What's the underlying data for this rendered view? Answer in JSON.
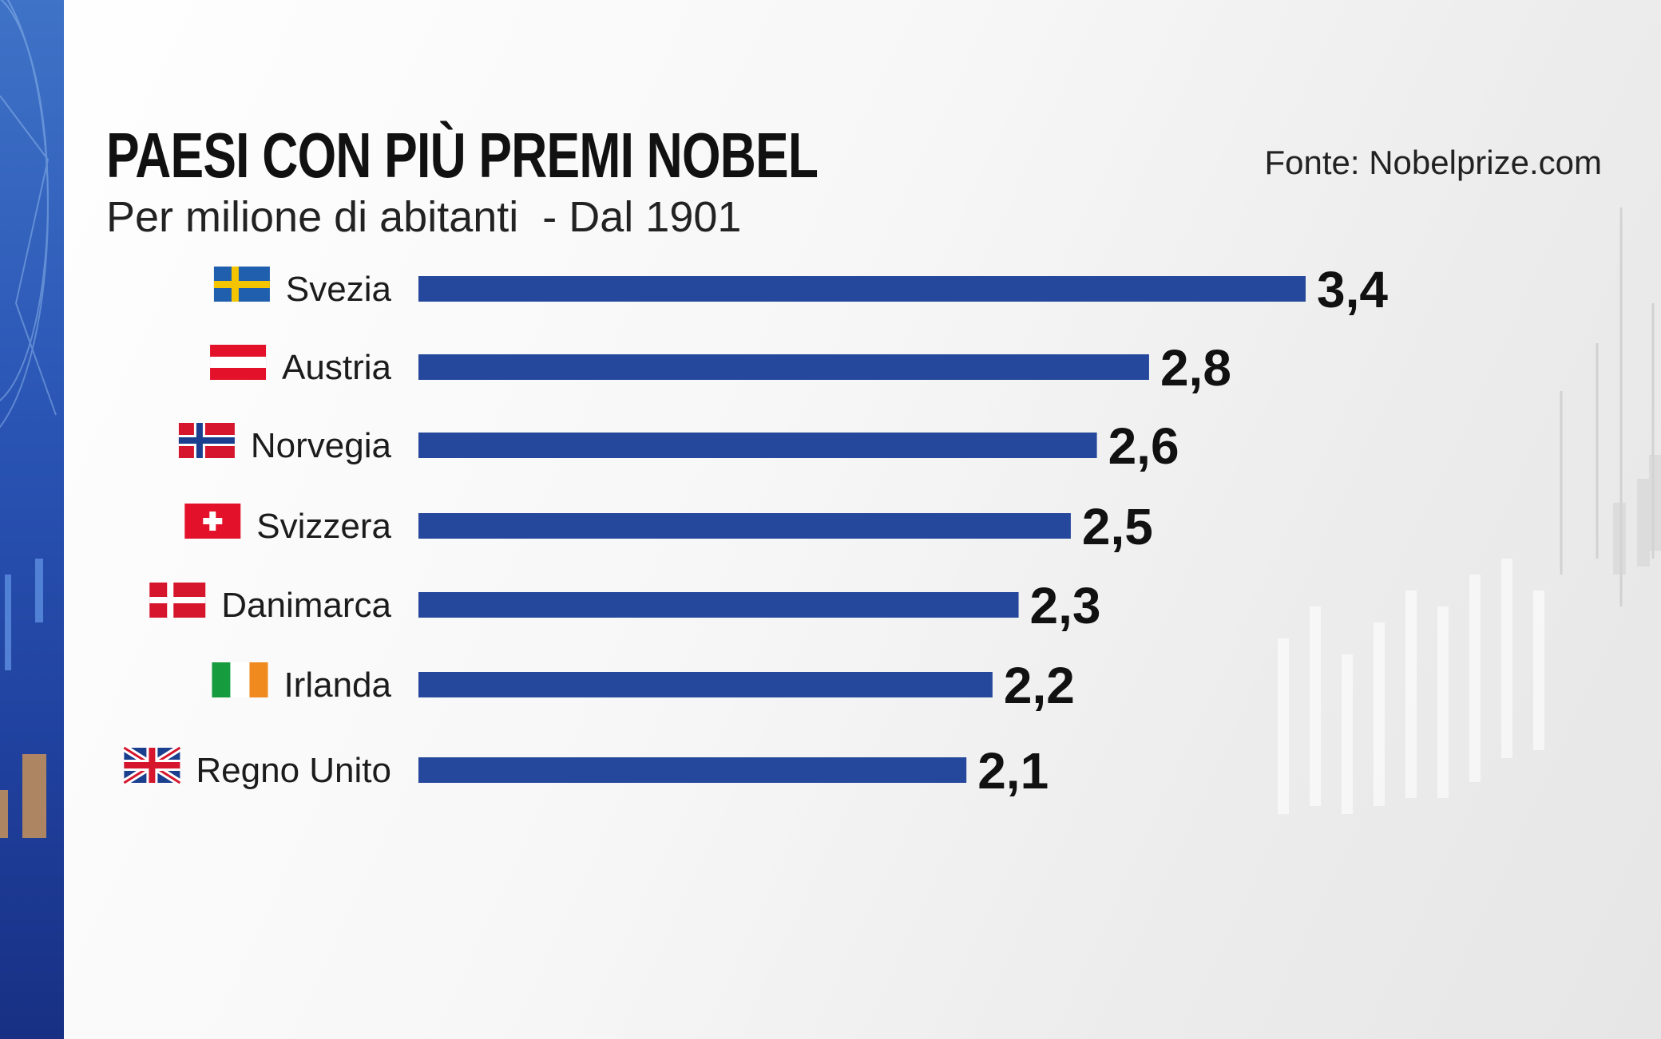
{
  "header": {
    "title": "PAESI CON PIÙ PREMI NOBEL",
    "subtitle": "Per milione di abitanti  - Dal 1901",
    "source": "Fonte: Nobelprize.com"
  },
  "colors": {
    "bar": "#26489c",
    "side_band": "#2a55b5",
    "text": "#111111"
  },
  "chart_data": {
    "type": "bar",
    "orientation": "horizontal",
    "title": "PAESI CON PIÙ PREMI NOBEL",
    "subtitle": "Per milione di abitanti  - Dal 1901",
    "categories": [
      "Svezia",
      "Austria",
      "Norvegia",
      "Svizzera",
      "Danimarca",
      "Irlanda",
      "Regno Unito"
    ],
    "values": [
      3.4,
      2.8,
      2.6,
      2.5,
      2.3,
      2.2,
      2.1
    ],
    "value_labels": [
      "3,4",
      "2,8",
      "2,6",
      "2,5",
      "2,3",
      "2,2",
      "2,1"
    ],
    "flags": [
      "sweden-flag",
      "austria-flag",
      "norway-flag",
      "switzerland-flag",
      "denmark-flag",
      "ireland-flag",
      "uk-flag"
    ],
    "xlim": [
      0,
      3.4
    ],
    "grid": false,
    "legend": "none"
  }
}
